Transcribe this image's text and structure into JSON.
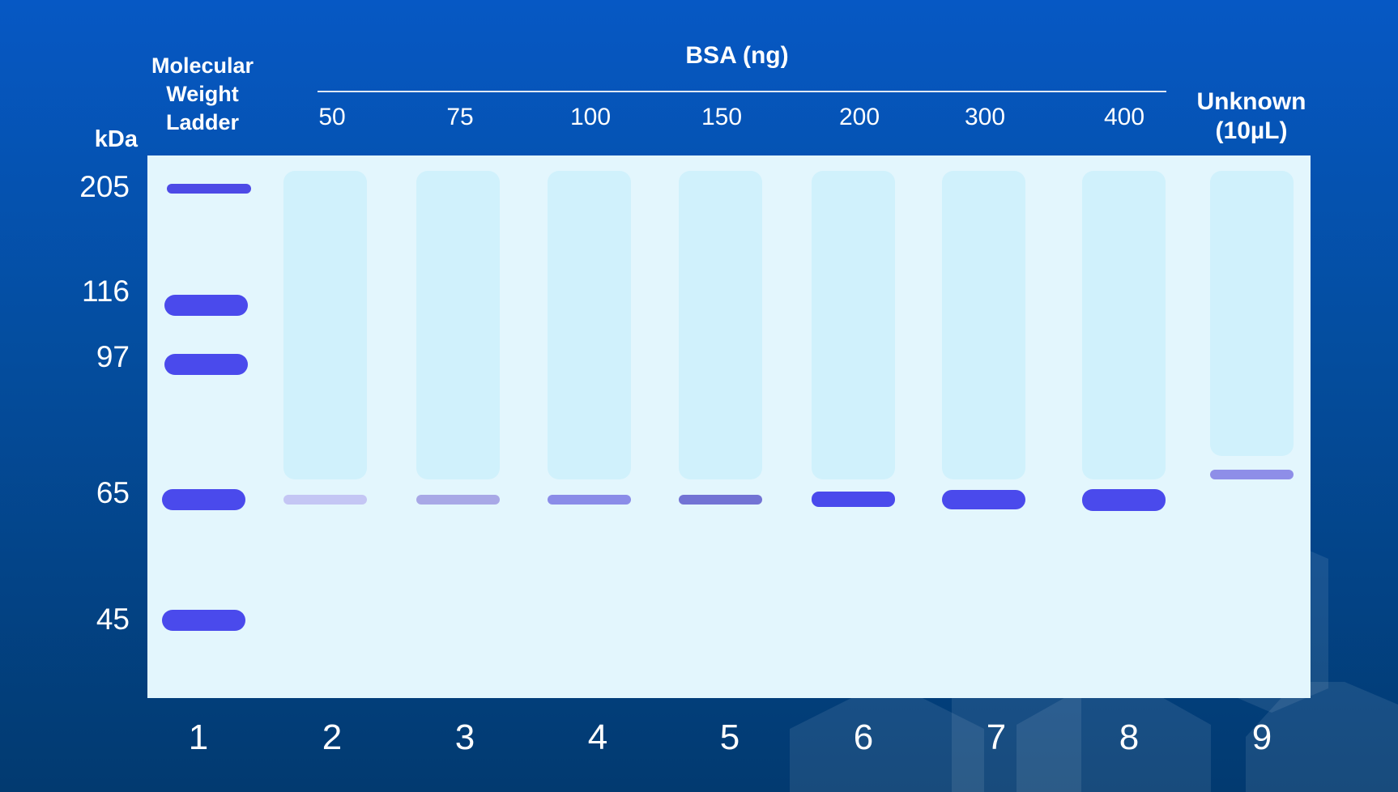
{
  "header": {
    "ladder_label_lines": [
      "Molecular",
      "Weight",
      "Ladder"
    ],
    "mw_unit": "kDa",
    "bsa_title": "BSA (ng)",
    "unknown_label_lines": [
      "Unknown",
      "(10µL)"
    ]
  },
  "bsa_amounts": [
    "50",
    "75",
    "100",
    "150",
    "200",
    "300",
    "400"
  ],
  "ladder_markers": [
    "205",
    "116",
    "97",
    "65",
    "45"
  ],
  "lane_numbers": [
    "1",
    "2",
    "3",
    "4",
    "5",
    "6",
    "7",
    "8",
    "9"
  ],
  "colors": {
    "background_top": "#0658c4",
    "background_bottom": "#023a70",
    "gel": "#e3f6fd",
    "well": "#d0f1fc",
    "band_strong": "#4a4aec"
  },
  "bands": {
    "ladder": [
      {
        "marker": "205",
        "color": "#4d4ae6"
      },
      {
        "marker": "116",
        "color": "#4a4aec"
      },
      {
        "marker": "97",
        "color": "#4a4aec"
      },
      {
        "marker": "65",
        "color": "#4a4aec"
      },
      {
        "marker": "45",
        "color": "#4a4aec"
      }
    ],
    "bsa": [
      {
        "amount": "50",
        "color": "#c4c6f4"
      },
      {
        "amount": "75",
        "color": "#a8a8e6"
      },
      {
        "amount": "100",
        "color": "#8a8ce8"
      },
      {
        "amount": "150",
        "color": "#7273d4"
      },
      {
        "amount": "200",
        "color": "#4a4aec"
      },
      {
        "amount": "300",
        "color": "#4a4aec"
      },
      {
        "amount": "400",
        "color": "#4a4aec"
      }
    ],
    "unknown": {
      "color": "#8e8ee8"
    }
  }
}
